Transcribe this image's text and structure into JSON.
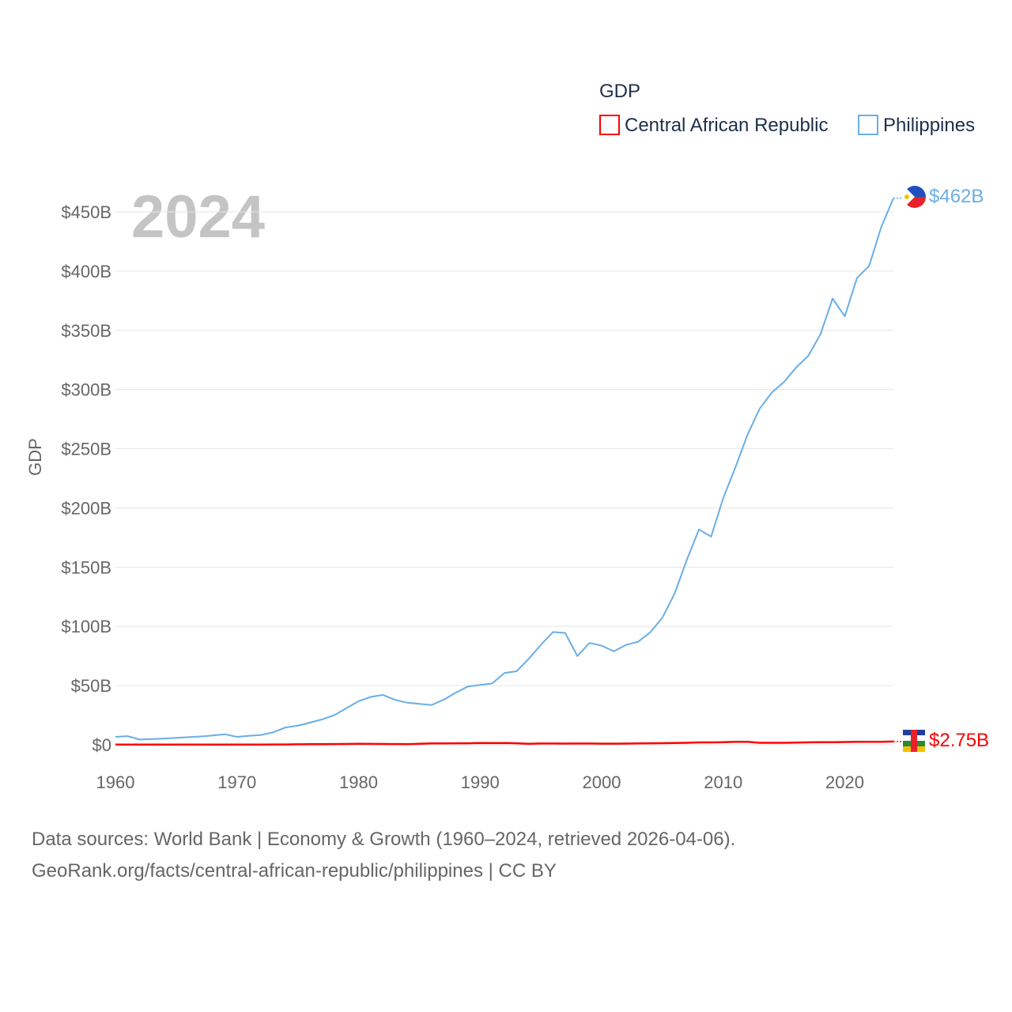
{
  "chart_data": {
    "type": "line",
    "legend_title": "GDP",
    "year_label": "2024",
    "ylabel": "GDP",
    "xlim": [
      1960,
      2024
    ],
    "ylim": [
      0,
      450
    ],
    "x_ticks": [
      1960,
      1970,
      1980,
      1990,
      2000,
      2010,
      2020
    ],
    "y_ticks": [
      {
        "value": 0,
        "label": "$0"
      },
      {
        "value": 50,
        "label": "$50B"
      },
      {
        "value": 100,
        "label": "$100B"
      },
      {
        "value": 150,
        "label": "$150B"
      },
      {
        "value": 200,
        "label": "$200B"
      },
      {
        "value": 250,
        "label": "$250B"
      },
      {
        "value": 300,
        "label": "$300B"
      },
      {
        "value": 350,
        "label": "$350B"
      },
      {
        "value": 400,
        "label": "$400B"
      },
      {
        "value": 450,
        "label": "$450B"
      }
    ],
    "x": [
      1960,
      1961,
      1962,
      1963,
      1964,
      1965,
      1966,
      1967,
      1968,
      1969,
      1970,
      1971,
      1972,
      1973,
      1974,
      1975,
      1976,
      1977,
      1978,
      1979,
      1980,
      1981,
      1982,
      1983,
      1984,
      1985,
      1986,
      1987,
      1988,
      1989,
      1990,
      1991,
      1992,
      1993,
      1994,
      1995,
      1996,
      1997,
      1998,
      1999,
      2000,
      2001,
      2002,
      2003,
      2004,
      2005,
      2006,
      2007,
      2008,
      2009,
      2010,
      2011,
      2012,
      2013,
      2014,
      2015,
      2016,
      2017,
      2018,
      2019,
      2020,
      2021,
      2022,
      2023,
      2024
    ],
    "series": [
      {
        "name": "Central African Republic",
        "color": "#ff0000",
        "end_label": "$2.75B",
        "values": [
          0.11,
          0.12,
          0.12,
          0.13,
          0.14,
          0.15,
          0.16,
          0.16,
          0.18,
          0.19,
          0.2,
          0.22,
          0.22,
          0.27,
          0.29,
          0.39,
          0.45,
          0.54,
          0.6,
          0.68,
          0.8,
          0.71,
          0.67,
          0.62,
          0.55,
          0.87,
          1.12,
          1.18,
          1.26,
          1.26,
          1.49,
          1.42,
          1.46,
          1.26,
          0.87,
          1.1,
          1.04,
          0.97,
          1.04,
          1.05,
          0.91,
          0.94,
          0.99,
          1.14,
          1.27,
          1.35,
          1.47,
          1.7,
          1.98,
          1.98,
          2.14,
          2.44,
          2.51,
          1.69,
          1.7,
          1.69,
          1.83,
          2.07,
          2.22,
          2.22,
          2.33,
          2.52,
          2.44,
          2.55,
          2.75
        ]
      },
      {
        "name": "Philippines",
        "color": "#6aaee6",
        "end_label": "$462B",
        "values": [
          6.7,
          7.3,
          4.4,
          4.9,
          5.3,
          5.9,
          6.4,
          7.0,
          7.9,
          8.9,
          6.7,
          7.6,
          8.3,
          10.6,
          14.6,
          16.1,
          18.7,
          21.4,
          25.0,
          30.9,
          36.8,
          40.4,
          42.1,
          37.9,
          35.5,
          34.6,
          33.6,
          38.0,
          44.0,
          49.2,
          50.5,
          51.8,
          60.6,
          62.1,
          72.6,
          84.4,
          95.2,
          94.4,
          74.9,
          86.0,
          83.7,
          78.9,
          84.3,
          87.0,
          95.0,
          107.4,
          127.7,
          155.9,
          181.8,
          175.7,
          208.4,
          234.2,
          261.9,
          283.9,
          297.5,
          306.4,
          318.6,
          328.5,
          346.8,
          376.8,
          361.8,
          394.1,
          404.4,
          437.1,
          461.6
        ]
      }
    ]
  },
  "footer": {
    "line1": "Data sources: World Bank | Economy & Growth (1960–2024, retrieved 2026-04-06).",
    "line2": "GeoRank.org/facts/central-african-republic/philippines | CC BY"
  }
}
